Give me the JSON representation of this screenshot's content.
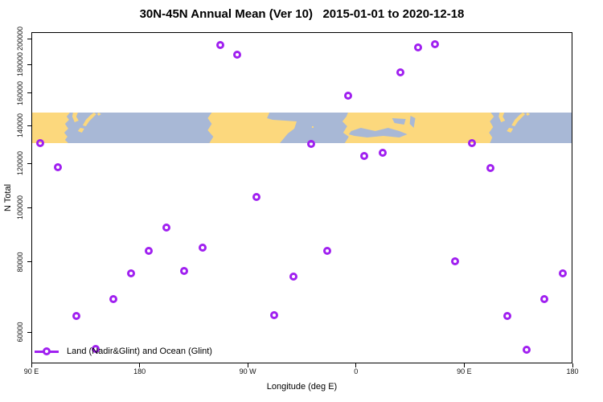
{
  "title": "30N-45N Annual Mean (Ver 10)   2015-01-01 to 2020-12-18",
  "chart_data": {
    "type": "scatter",
    "title": "30N-45N Annual Mean (Ver 10)   2015-01-01 to 2020-12-18",
    "xlabel": "Longitude (deg E)",
    "ylabel": "N Total",
    "x_scale": "linear",
    "y_scale": "log",
    "xlim": [
      90,
      540
    ],
    "ylim": [
      52800,
      205400
    ],
    "grid": false,
    "x_ticks": [
      {
        "value": 90,
        "label": "90 E"
      },
      {
        "value": 180,
        "label": "180"
      },
      {
        "value": 270,
        "label": "90 W"
      },
      {
        "value": 360,
        "label": "0"
      },
      {
        "value": 450,
        "label": "90 E"
      },
      {
        "value": 540,
        "label": "180"
      }
    ],
    "y_ticks": [
      {
        "value": 60000,
        "label": "60000"
      },
      {
        "value": 80000,
        "label": "80000"
      },
      {
        "value": 100000,
        "label": "100000"
      },
      {
        "value": 120000,
        "label": "120000"
      },
      {
        "value": 140000,
        "label": "140000"
      },
      {
        "value": 160000,
        "label": "160000"
      },
      {
        "value": 180000,
        "label": "180000"
      },
      {
        "value": 200000,
        "label": "200000"
      }
    ],
    "map_band": {
      "top_value": 147700,
      "bottom_value": 130300
    },
    "legend": {
      "label": "Land (Nadir&Glint) and Ocean (Glint)",
      "position": "bottom-left",
      "marker": "open-circle-on-line"
    },
    "series": [
      {
        "name": "Land (Nadir&Glint) and Ocean (Glint)",
        "points": [
          {
            "lon": 97.4,
            "n": 130400
          },
          {
            "lon": 112.1,
            "n": 117900
          },
          {
            "lon": 127.4,
            "n": 64100
          },
          {
            "lon": 143.5,
            "n": 56000
          },
          {
            "lon": 158.2,
            "n": 68800
          },
          {
            "lon": 172.9,
            "n": 76400
          },
          {
            "lon": 187.6,
            "n": 83900
          },
          {
            "lon": 202.3,
            "n": 92200
          },
          {
            "lon": 217.0,
            "n": 77100
          },
          {
            "lon": 232.4,
            "n": 84900
          },
          {
            "lon": 247.1,
            "n": 194900
          },
          {
            "lon": 261.2,
            "n": 187100
          },
          {
            "lon": 277.2,
            "n": 104500
          },
          {
            "lon": 291.9,
            "n": 64300
          },
          {
            "lon": 308.0,
            "n": 75300
          },
          {
            "lon": 322.7,
            "n": 129700
          },
          {
            "lon": 336.1,
            "n": 83900
          },
          {
            "lon": 353.5,
            "n": 158300
          },
          {
            "lon": 366.8,
            "n": 123600
          },
          {
            "lon": 382.2,
            "n": 125200
          },
          {
            "lon": 396.9,
            "n": 174300
          },
          {
            "lon": 411.6,
            "n": 193000
          },
          {
            "lon": 425.7,
            "n": 195600
          },
          {
            "lon": 442.4,
            "n": 80200
          },
          {
            "lon": 456.4,
            "n": 130400
          },
          {
            "lon": 471.8,
            "n": 117500
          },
          {
            "lon": 485.9,
            "n": 64100
          },
          {
            "lon": 501.9,
            "n": 55800
          },
          {
            "lon": 516.6,
            "n": 68800
          },
          {
            "lon": 532.0,
            "n": 76400
          }
        ]
      }
    ],
    "colors": {
      "point": "#A020F0",
      "land": "#FCD87D",
      "ocean": "#A8B8D6",
      "axis": "#000000"
    }
  }
}
